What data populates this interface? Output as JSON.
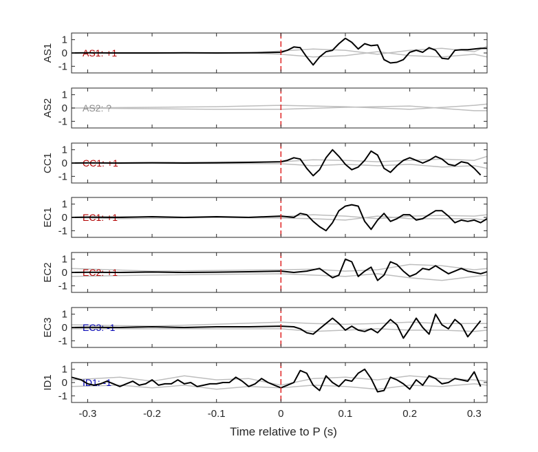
{
  "chart_data": {
    "type": "line",
    "xlabel": "Time relative to P (s)",
    "xlim": [
      -0.325,
      0.32
    ],
    "x_ticks": [
      -0.3,
      -0.2,
      -0.1,
      0,
      0.1,
      0.2,
      0.3
    ],
    "x_tick_labels": [
      "-0.3",
      "-0.2",
      "-0.1",
      "0",
      "0.1",
      "0.2",
      "0.3"
    ],
    "ylim": [
      -1.5,
      1.5
    ],
    "y_ticks": [
      -1,
      0,
      1
    ],
    "y_tick_labels": [
      "-1",
      "0",
      "1"
    ],
    "pick_marker_time": 0,
    "colors": {
      "main": "#000000",
      "background": "#bdbdbd",
      "pick_marker": "#e02020",
      "positive": "#b30000",
      "negative": "#0000b3",
      "unknown": "#8c8c8c"
    },
    "panels": [
      {
        "station": "AS1",
        "label": "AS1: +1",
        "polarity": "positive",
        "has_main": true,
        "main_x": [
          -0.325,
          -0.3,
          -0.25,
          -0.2,
          -0.15,
          -0.1,
          -0.05,
          0,
          0.01,
          0.02,
          0.03,
          0.04,
          0.05,
          0.06,
          0.07,
          0.08,
          0.09,
          0.1,
          0.11,
          0.12,
          0.13,
          0.14,
          0.15,
          0.16,
          0.17,
          0.18,
          0.19,
          0.2,
          0.21,
          0.22,
          0.23,
          0.24,
          0.25,
          0.26,
          0.27,
          0.28,
          0.29,
          0.3,
          0.31,
          0.32
        ],
        "main_y": [
          0,
          0.01,
          0,
          0,
          0.01,
          0,
          0.01,
          0.05,
          0.2,
          0.45,
          0.4,
          -0.3,
          -0.9,
          -0.3,
          0.1,
          0.2,
          0.7,
          1.1,
          0.8,
          0.3,
          0.7,
          0.55,
          0.6,
          -0.5,
          -0.75,
          -0.7,
          -0.5,
          0.05,
          0.2,
          0.05,
          0.4,
          0.2,
          -0.4,
          -0.45,
          0.2,
          0.25,
          0.25,
          0.3,
          0.35,
          0.35
        ],
        "background": [
          {
            "x": [
              -0.325,
              -0.05,
              0,
              0.05,
              0.1,
              0.15,
              0.2,
              0.25,
              0.3,
              0.32
            ],
            "y": [
              0,
              0,
              0.15,
              0.3,
              0.2,
              -0.1,
              0.2,
              0.35,
              0.1,
              0.5
            ]
          },
          {
            "x": [
              -0.325,
              -0.05,
              0,
              0.05,
              0.1,
              0.15,
              0.2,
              0.25,
              0.3,
              0.32
            ],
            "y": [
              0,
              0,
              -0.1,
              -0.3,
              -0.2,
              0.1,
              -0.2,
              -0.3,
              -0.1,
              -0.3
            ]
          }
        ]
      },
      {
        "station": "AS2",
        "label": "AS2: ?",
        "polarity": "unknown",
        "has_main": false,
        "main_x": [],
        "main_y": [],
        "background": [
          {
            "x": [
              -0.325,
              -0.2,
              -0.1,
              0,
              0.1,
              0.2,
              0.3,
              0.32
            ],
            "y": [
              0,
              0.05,
              0.1,
              0.2,
              0.1,
              -0.1,
              0.2,
              0.3
            ]
          },
          {
            "x": [
              -0.325,
              -0.2,
              -0.1,
              0,
              0.1,
              0.2,
              0.3,
              0.32
            ],
            "y": [
              0,
              -0.05,
              -0.1,
              -0.1,
              0.05,
              0.15,
              -0.2,
              -0.2
            ]
          }
        ]
      },
      {
        "station": "CC1",
        "label": "CC1: +1",
        "polarity": "positive",
        "has_main": true,
        "main_x": [
          -0.325,
          -0.3,
          -0.25,
          -0.2,
          -0.15,
          -0.1,
          -0.05,
          0,
          0.01,
          0.02,
          0.03,
          0.04,
          0.05,
          0.06,
          0.07,
          0.08,
          0.09,
          0.1,
          0.11,
          0.12,
          0.13,
          0.14,
          0.15,
          0.16,
          0.17,
          0.18,
          0.19,
          0.2,
          0.21,
          0.22,
          0.23,
          0.24,
          0.25,
          0.26,
          0.27,
          0.28,
          0.29,
          0.3,
          0.31
        ],
        "main_y": [
          0,
          0.01,
          0,
          0.02,
          0,
          0.02,
          0.05,
          0.1,
          0.2,
          0.4,
          0.3,
          -0.4,
          -0.95,
          -0.5,
          0.4,
          1.0,
          0.5,
          -0.1,
          -0.5,
          -0.3,
          0.2,
          0.9,
          0.6,
          -0.4,
          -0.7,
          -0.2,
          0.2,
          0.4,
          0.2,
          0.0,
          0.2,
          0.5,
          0.3,
          -0.1,
          -0.2,
          0.1,
          0.0,
          -0.4,
          -0.9
        ],
        "background": [
          {
            "x": [
              -0.325,
              0,
              0.05,
              0.1,
              0.15,
              0.2,
              0.25,
              0.3,
              0.32
            ],
            "y": [
              0,
              0.1,
              0.25,
              0.2,
              0.1,
              0.2,
              0.3,
              0.2,
              0.5
            ]
          },
          {
            "x": [
              -0.325,
              0,
              0.05,
              0.1,
              0.15,
              0.2,
              0.25,
              0.3,
              0.32
            ],
            "y": [
              0,
              -0.05,
              -0.2,
              -0.1,
              -0.2,
              -0.1,
              -0.3,
              -0.2,
              -0.4
            ]
          }
        ]
      },
      {
        "station": "EC1",
        "label": "EC1: +1",
        "polarity": "positive",
        "has_main": true,
        "main_x": [
          -0.325,
          -0.3,
          -0.25,
          -0.2,
          -0.15,
          -0.1,
          -0.05,
          0,
          0.02,
          0.03,
          0.04,
          0.05,
          0.06,
          0.07,
          0.08,
          0.09,
          0.1,
          0.11,
          0.12,
          0.13,
          0.14,
          0.15,
          0.16,
          0.17,
          0.18,
          0.19,
          0.2,
          0.21,
          0.22,
          0.23,
          0.24,
          0.25,
          0.26,
          0.27,
          0.28,
          0.29,
          0.3,
          0.31,
          0.32
        ],
        "main_y": [
          0,
          0.02,
          0,
          0.05,
          0,
          0.05,
          0,
          0.1,
          0,
          0.3,
          0.2,
          -0.3,
          -0.7,
          -1.0,
          -0.4,
          0.5,
          0.85,
          0.95,
          0.85,
          -0.3,
          -0.9,
          -0.2,
          0.3,
          -0.3,
          -0.1,
          0.2,
          0.2,
          -0.2,
          -0.1,
          0.2,
          0.5,
          0.5,
          0.1,
          -0.4,
          -0.2,
          -0.3,
          -0.2,
          -0.4,
          -0.1
        ],
        "background": [
          {
            "x": [
              -0.325,
              -0.25,
              0,
              0.05,
              0.1,
              0.15,
              0.2,
              0.25,
              0.3,
              0.32
            ],
            "y": [
              0,
              -0.1,
              0.05,
              0.2,
              0.1,
              -0.1,
              0.1,
              0.15,
              0.1,
              0.2
            ]
          },
          {
            "x": [
              -0.325,
              -0.25,
              0,
              0.05,
              0.1,
              0.15,
              0.2,
              0.25,
              0.3,
              0.32
            ],
            "y": [
              0,
              0.05,
              -0.05,
              -0.1,
              -0.2,
              0.1,
              -0.1,
              -0.1,
              -0.1,
              -0.2
            ]
          }
        ]
      },
      {
        "station": "EC2",
        "label": "EC2: +1",
        "polarity": "positive",
        "has_main": true,
        "main_x": [
          -0.325,
          -0.3,
          -0.25,
          -0.2,
          -0.15,
          -0.1,
          -0.05,
          0,
          0.02,
          0.04,
          0.06,
          0.08,
          0.09,
          0.1,
          0.11,
          0.12,
          0.13,
          0.14,
          0.15,
          0.16,
          0.17,
          0.18,
          0.19,
          0.2,
          0.21,
          0.22,
          0.23,
          0.24,
          0.25,
          0.26,
          0.27,
          0.28,
          0.29,
          0.3,
          0.31,
          0.32
        ],
        "main_y": [
          0,
          0.01,
          0,
          0.03,
          0,
          0.02,
          0.05,
          0.1,
          0,
          0.1,
          0.3,
          -0.4,
          -0.2,
          1.0,
          0.8,
          -0.3,
          0.1,
          0.4,
          -0.6,
          -0.2,
          0.8,
          0.6,
          0.1,
          -0.3,
          -0.1,
          0.3,
          0.2,
          0.5,
          0.2,
          -0.1,
          0.1,
          0.3,
          0.1,
          0.0,
          -0.1,
          0.05
        ],
        "background": [
          {
            "x": [
              -0.325,
              -0.2,
              0,
              0.05,
              0.1,
              0.15,
              0.2,
              0.25,
              0.3,
              0.32
            ],
            "y": [
              0.3,
              0.1,
              0.2,
              0.25,
              0.1,
              0.2,
              0.6,
              0.5,
              0.2,
              0.3
            ]
          },
          {
            "x": [
              -0.325,
              -0.2,
              0,
              0.05,
              0.1,
              0.15,
              0.2,
              0.25,
              0.3,
              0.32
            ],
            "y": [
              -0.3,
              -0.2,
              -0.1,
              -0.2,
              -0.3,
              -0.1,
              -0.4,
              -0.6,
              -0.3,
              -0.2
            ]
          }
        ]
      },
      {
        "station": "EC3",
        "label": "EC3: -1",
        "polarity": "negative",
        "has_main": true,
        "main_x": [
          -0.325,
          -0.3,
          -0.25,
          -0.2,
          -0.15,
          -0.1,
          -0.05,
          0,
          0.02,
          0.03,
          0.04,
          0.05,
          0.06,
          0.07,
          0.08,
          0.09,
          0.1,
          0.11,
          0.12,
          0.13,
          0.14,
          0.15,
          0.16,
          0.17,
          0.18,
          0.19,
          0.2,
          0.21,
          0.22,
          0.23,
          0.24,
          0.25,
          0.26,
          0.27,
          0.28,
          0.29,
          0.3,
          0.31
        ],
        "main_y": [
          0,
          0.01,
          0,
          0.05,
          0,
          0.05,
          0.05,
          0.1,
          0.05,
          -0.1,
          -0.4,
          -0.5,
          -0.1,
          0.3,
          0.7,
          0.3,
          -0.2,
          0.1,
          -0.2,
          -0.3,
          -0.1,
          -0.4,
          0.1,
          0.6,
          0.2,
          -0.8,
          -0.1,
          0.7,
          0.0,
          -0.5,
          1.0,
          0.2,
          -0.1,
          0.6,
          0.2,
          -0.7,
          -0.1,
          0.5
        ],
        "background": [
          {
            "x": [
              -0.325,
              -0.2,
              0,
              0.05,
              0.1,
              0.15,
              0.2,
              0.25,
              0.3,
              0.32
            ],
            "y": [
              0.2,
              0.1,
              0.4,
              0.3,
              0.25,
              0.3,
              0.4,
              0.3,
              0.3,
              0.3
            ]
          },
          {
            "x": [
              -0.325,
              -0.2,
              0,
              0.05,
              0.1,
              0.15,
              0.2,
              0.25,
              0.3,
              0.32
            ],
            "y": [
              -0.1,
              -0.1,
              -0.1,
              -0.3,
              -0.2,
              -0.1,
              -0.2,
              -0.2,
              -0.3,
              -0.2
            ]
          }
        ]
      },
      {
        "station": "ID1",
        "label": "ID1: -1",
        "polarity": "negative",
        "has_main": true,
        "main_x": [
          -0.325,
          -0.31,
          -0.3,
          -0.29,
          -0.28,
          -0.27,
          -0.26,
          -0.25,
          -0.24,
          -0.23,
          -0.22,
          -0.21,
          -0.2,
          -0.19,
          -0.18,
          -0.17,
          -0.16,
          -0.15,
          -0.14,
          -0.13,
          -0.12,
          -0.11,
          -0.1,
          -0.09,
          -0.08,
          -0.07,
          -0.06,
          -0.05,
          -0.04,
          -0.03,
          -0.02,
          -0.01,
          0,
          0.01,
          0.02,
          0.03,
          0.04,
          0.05,
          0.06,
          0.07,
          0.08,
          0.09,
          0.1,
          0.11,
          0.12,
          0.13,
          0.14,
          0.15,
          0.16,
          0.17,
          0.18,
          0.19,
          0.2,
          0.21,
          0.22,
          0.23,
          0.24,
          0.25,
          0.26,
          0.27,
          0.28,
          0.29,
          0.3,
          0.31
        ],
        "main_y": [
          0.4,
          0.2,
          -0.1,
          -0.2,
          -0.1,
          0.1,
          -0.1,
          -0.3,
          -0.1,
          0.1,
          -0.2,
          -0.1,
          0.2,
          -0.2,
          -0.1,
          -0.1,
          0.2,
          -0.1,
          0.0,
          -0.3,
          -0.2,
          -0.1,
          -0.1,
          0.0,
          0.0,
          0.4,
          0.1,
          -0.3,
          -0.1,
          0.3,
          0.0,
          -0.2,
          -0.4,
          -0.2,
          0.0,
          0.9,
          0.7,
          -0.2,
          -0.6,
          0.5,
          0.0,
          -0.3,
          0.2,
          0.1,
          0.7,
          1.0,
          0.3,
          -0.7,
          -0.6,
          0.4,
          0.2,
          -0.1,
          -0.5,
          0.2,
          -0.2,
          0.5,
          0.3,
          -0.1,
          0.0,
          0.3,
          0.2,
          0.1,
          0.8,
          -0.3
        ],
        "background": [
          {
            "x": [
              -0.325,
              -0.25,
              -0.2,
              -0.15,
              -0.1,
              -0.05,
              0,
              0.05,
              0.1,
              0.15,
              0.2,
              0.25,
              0.3,
              0.32
            ],
            "y": [
              0.2,
              0.4,
              0.1,
              0.5,
              0.2,
              0.3,
              -0.2,
              0.3,
              0.4,
              0.2,
              0.5,
              0.3,
              0.2,
              0.1
            ]
          },
          {
            "x": [
              -0.325,
              -0.25,
              -0.2,
              -0.15,
              -0.1,
              -0.05,
              0,
              0.05,
              0.1,
              0.15,
              0.2,
              0.25,
              0.3,
              0.32
            ],
            "y": [
              -0.3,
              -0.2,
              -0.4,
              -0.2,
              -0.5,
              -0.3,
              -0.4,
              -0.2,
              -0.3,
              -0.5,
              -0.2,
              -0.3,
              -0.1,
              -0.2
            ]
          }
        ]
      }
    ]
  }
}
